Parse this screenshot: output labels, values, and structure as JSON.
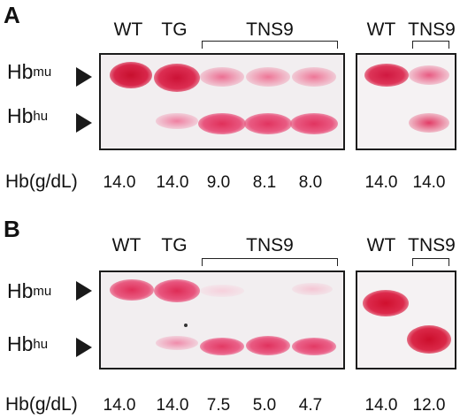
{
  "panels": [
    {
      "letter": "A",
      "lanes_left": [
        "WT",
        "TG"
      ],
      "group_left": "TNS9",
      "lanes_right": [
        "WT",
        "TNS9"
      ],
      "row_mu": {
        "base": "Hb",
        "sup": "mu"
      },
      "row_hu": {
        "base": "Hb",
        "sup": "hu"
      },
      "hb_label": "Hb(g/dL)",
      "values": [
        "14.0",
        "14.0",
        "9.0",
        "8.1",
        "8.0",
        "14.0",
        "14.0"
      ]
    },
    {
      "letter": "B",
      "lanes_left": [
        "WT",
        "TG"
      ],
      "group_left": "TNS9",
      "lanes_right": [
        "WT",
        "TNS9"
      ],
      "row_mu": {
        "base": "Hb",
        "sup": "mu"
      },
      "row_hu": {
        "base": "Hb",
        "sup": "hu"
      },
      "hb_label": "Hb(g/dL)",
      "values": [
        "14.0",
        "14.0",
        "7.5",
        "5.0",
        "4.7",
        "14.0",
        "12.0"
      ]
    }
  ],
  "colors": {
    "band_strong": "#d81840",
    "band_mid": "#e8507a",
    "band_light": "#f0a3bd",
    "gel_bg": "#f2eef0"
  }
}
